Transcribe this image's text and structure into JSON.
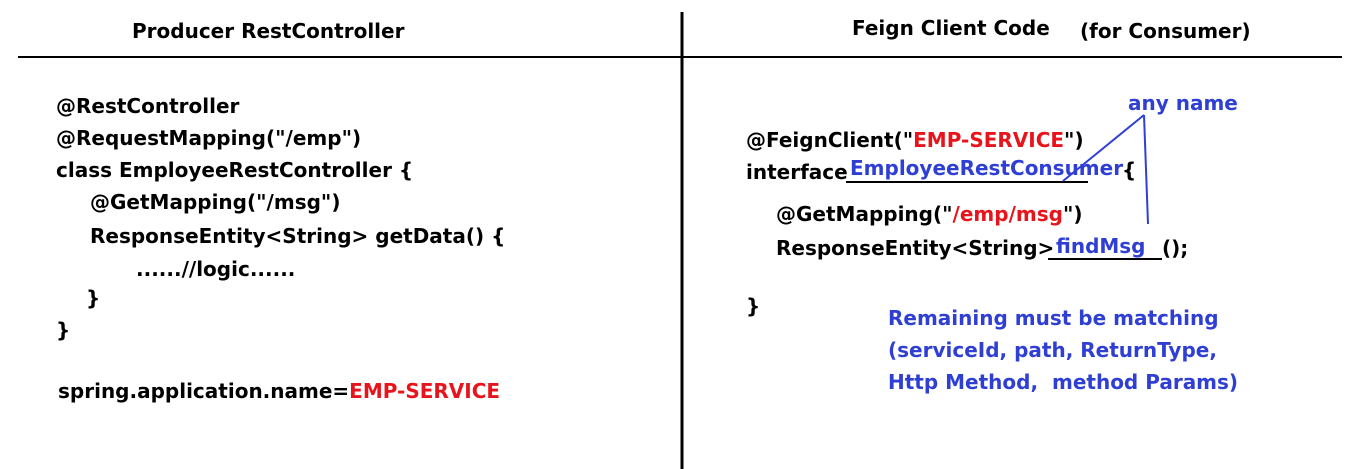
{
  "left": {
    "heading": "Producer RestController",
    "lines": [
      "@RestController",
      "@RequestMapping(\"/emp\")",
      "class EmployeeRestController {",
      "@GetMapping(\"/msg\")",
      "ResponseEntity<String> getData() {",
      "......//logic......",
      "}",
      "}"
    ],
    "app_name_prefix": "spring.application.name=",
    "app_name_value": "EMP-SERVICE"
  },
  "right": {
    "heading": "Feign Client Code",
    "heading_suffix": "(for Consumer)",
    "any_name": "any name",
    "feign_prefix": "@FeignClient(\"",
    "feign_value": "EMP-SERVICE",
    "feign_suffix": "\")",
    "interface_kw": "interface",
    "interface_name": "EmployeeRestConsumer",
    "interface_brace": "{",
    "get_prefix": "@GetMapping(\"",
    "get_value": "/emp/msg",
    "get_suffix": "\")",
    "response_prefix": "ResponseEntity<String>",
    "method_name": "findMsg",
    "method_suffix": "();",
    "close_brace": "}",
    "note": [
      "Remaining must be matching",
      "(serviceId, path, ReturnType,",
      "Http Method,  method Params)"
    ]
  },
  "colors": {
    "red": "#e8141c",
    "blue": "#2f3fd4",
    "black": "#000000"
  }
}
